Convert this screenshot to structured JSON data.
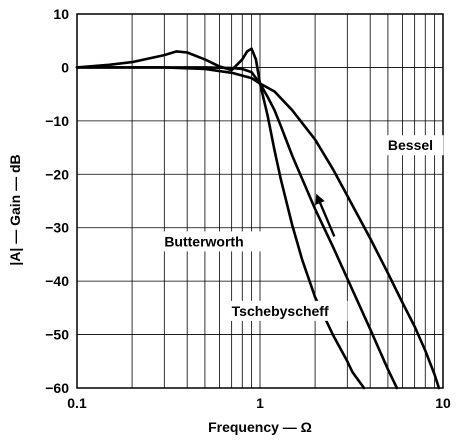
{
  "chart_data": {
    "type": "line",
    "xlabel": "Frequency — Ω",
    "ylabel": "|A| — Gain — dB",
    "x_scale": "log",
    "xlim": [
      0.1,
      10
    ],
    "ylim": [
      -60,
      10
    ],
    "grid": true,
    "x_ticks": [
      {
        "value": 0.1,
        "label": "0.1"
      },
      {
        "value": 1,
        "label": "1"
      },
      {
        "value": 10,
        "label": "10"
      }
    ],
    "y_ticks": [
      {
        "value": 10,
        "label": "10"
      },
      {
        "value": 0,
        "label": "0"
      },
      {
        "value": -10,
        "label": "−10"
      },
      {
        "value": -20,
        "label": "−20"
      },
      {
        "value": -30,
        "label": "−30"
      },
      {
        "value": -40,
        "label": "−40"
      },
      {
        "value": -50,
        "label": "−50"
      },
      {
        "value": -60,
        "label": "−60"
      }
    ],
    "series": [
      {
        "name": "Bessel",
        "x": [
          0.1,
          0.3,
          0.5,
          0.7,
          0.9,
          1.0,
          1.2,
          1.5,
          2.0,
          2.5,
          3.0,
          4.0,
          5.0,
          6.0,
          7.0,
          8.0,
          9.0,
          9.5
        ],
        "y": [
          0,
          0,
          -0.3,
          -1.0,
          -2.0,
          -3.0,
          -4.5,
          -8.0,
          -13.5,
          -19.0,
          -24.0,
          -32.0,
          -38.5,
          -44.0,
          -48.5,
          -53.0,
          -57.5,
          -60.0
        ]
      },
      {
        "name": "Butterworth",
        "x": [
          0.1,
          0.5,
          0.7,
          0.8,
          0.9,
          1.0,
          1.1,
          1.2,
          1.3,
          1.5,
          2.0,
          2.5,
          3.0,
          4.0,
          5.0,
          5.6
        ],
        "y": [
          0,
          0,
          -0.1,
          -0.3,
          -0.9,
          -3.0,
          -5.5,
          -8.0,
          -11.0,
          -16.5,
          -26.5,
          -33.5,
          -39.5,
          -49.0,
          -56.5,
          -60.0
        ]
      },
      {
        "name": "Tschebyscheff",
        "x": [
          0.1,
          0.15,
          0.2,
          0.3,
          0.35,
          0.4,
          0.5,
          0.6,
          0.7,
          0.8,
          0.85,
          0.9,
          0.95,
          1.0,
          1.1,
          1.2,
          1.3,
          1.5,
          1.7,
          2.0,
          2.5,
          3.0,
          3.2,
          3.7
        ],
        "y": [
          0,
          0.5,
          1.0,
          2.3,
          3.0,
          2.8,
          1.5,
          0.2,
          -0.5,
          1.5,
          3.0,
          3.5,
          1.5,
          -3.0,
          -9.0,
          -15.5,
          -21.0,
          -29.5,
          -36.0,
          -43.0,
          -50.0,
          -55.0,
          -57.0,
          -60.0
        ]
      }
    ],
    "annotations": [
      {
        "text": "Bessel",
        "x": 5.0,
        "y": -15.5
      },
      {
        "text": "Butterworth",
        "x": 0.3,
        "y": -33.5,
        "arrow_to": {
          "x": 2.05,
          "y": -24.0
        }
      },
      {
        "text": "Tschebyscheff",
        "x": 0.7,
        "y": -46.5
      }
    ]
  }
}
